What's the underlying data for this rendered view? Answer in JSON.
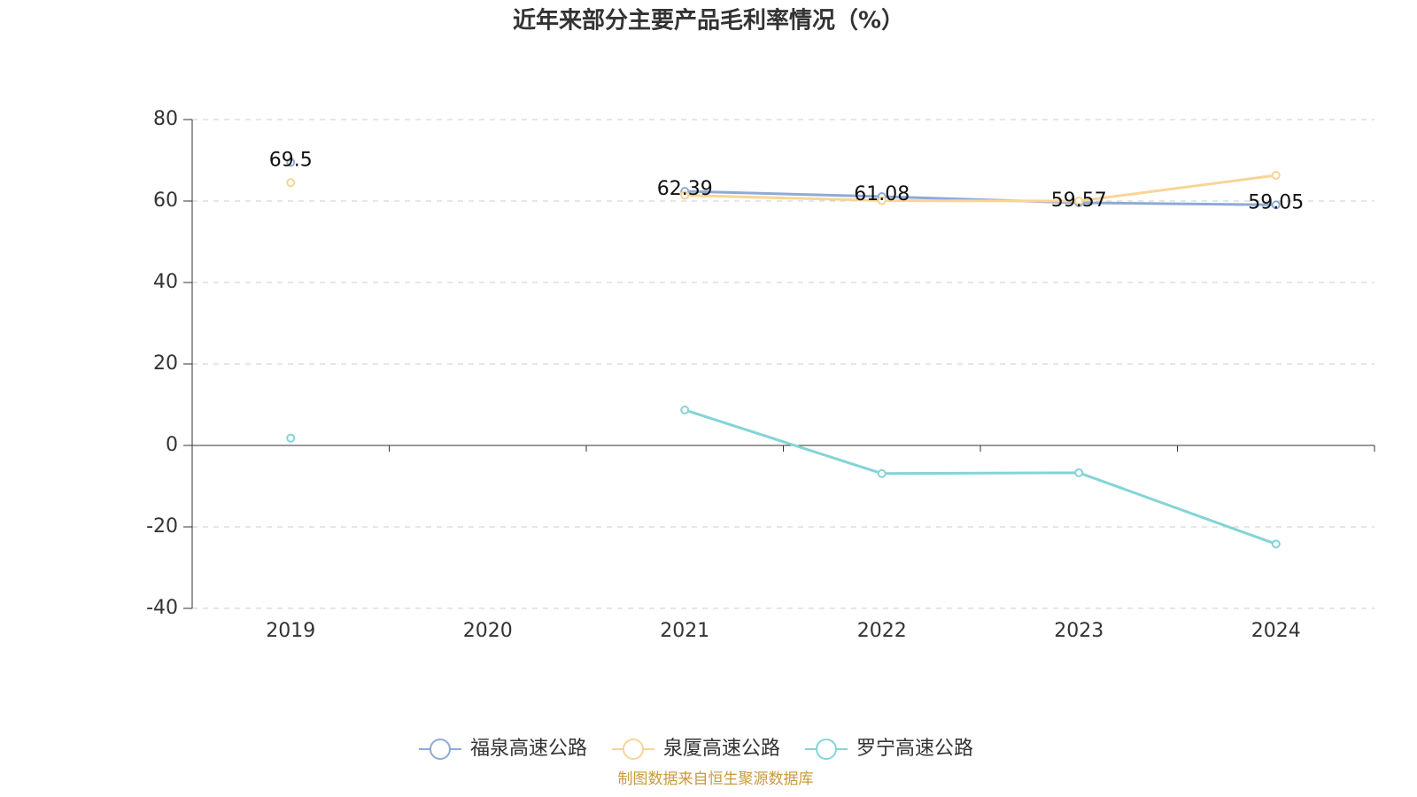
{
  "chart_data": {
    "type": "line",
    "title": "近年来部分主要产品毛利率情况（%）",
    "categories": [
      "2019",
      "2020",
      "2021",
      "2022",
      "2023",
      "2024"
    ],
    "series": [
      {
        "name": "福泉高速公路",
        "color": "#8eaad6",
        "values": [
          69.5,
          null,
          62.39,
          61.08,
          59.57,
          59.05
        ],
        "show_labels": true
      },
      {
        "name": "泉厦高速公路",
        "color": "#f8d595",
        "values": [
          64.5,
          null,
          61.4,
          60.1,
          60.0,
          66.3
        ]
      },
      {
        "name": "罗宁高速公路",
        "color": "#84d4d6",
        "values": [
          1.8,
          null,
          8.7,
          -6.9,
          -6.7,
          -24.2
        ]
      }
    ],
    "ylim": [
      -40,
      80
    ],
    "yticks": [
      -40,
      -20,
      0,
      20,
      40,
      60,
      80
    ],
    "grid": true,
    "source": "制图数据来自恒生聚源数据库"
  }
}
